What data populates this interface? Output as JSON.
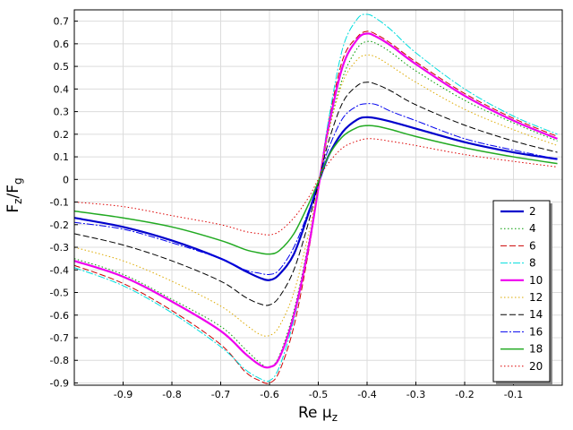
{
  "chart_data": {
    "type": "line",
    "xlabel": {
      "main": "Re μ",
      "sub": "z"
    },
    "ylabel": {
      "num": "F",
      "num_sub": "z",
      "sep": "/",
      "den": "F",
      "den_sub": "g"
    },
    "xlim": [
      -1.0,
      -0.0
    ],
    "ylim": [
      -0.91,
      0.75
    ],
    "x_ticks": [
      -0.9,
      -0.8,
      -0.7,
      -0.6,
      -0.5,
      -0.4,
      -0.3,
      -0.2,
      -0.1
    ],
    "y_ticks": [
      -0.9,
      -0.8,
      -0.7,
      -0.6,
      -0.5,
      -0.4,
      -0.3,
      -0.2,
      -0.1,
      0,
      0.1,
      0.2,
      0.3,
      0.4,
      0.5,
      0.6,
      0.7
    ],
    "grid": true,
    "legend_position": "bottom-right",
    "series": [
      {
        "name": "2",
        "color": "#0000cc",
        "dash": "solid",
        "width": 2.2,
        "x": [
          -1.0,
          -0.9,
          -0.8,
          -0.7,
          -0.65,
          -0.62,
          -0.6,
          -0.58,
          -0.55,
          -0.52,
          -0.5,
          -0.48,
          -0.45,
          -0.42,
          -0.4,
          -0.38,
          -0.35,
          -0.3,
          -0.2,
          -0.1,
          -0.01
        ],
        "values": [
          -0.17,
          -0.21,
          -0.27,
          -0.35,
          -0.405,
          -0.435,
          -0.445,
          -0.42,
          -0.33,
          -0.15,
          -0.02,
          0.1,
          0.21,
          0.265,
          0.275,
          0.27,
          0.255,
          0.225,
          0.165,
          0.12,
          0.09
        ]
      },
      {
        "name": "4",
        "color": "#009900",
        "dash": "1.5,2.5",
        "width": 1.0,
        "x": [
          -1.0,
          -0.9,
          -0.8,
          -0.7,
          -0.65,
          -0.62,
          -0.6,
          -0.58,
          -0.55,
          -0.52,
          -0.5,
          -0.48,
          -0.45,
          -0.42,
          -0.4,
          -0.38,
          -0.35,
          -0.3,
          -0.2,
          -0.1,
          -0.01
        ],
        "values": [
          -0.35,
          -0.42,
          -0.53,
          -0.65,
          -0.75,
          -0.81,
          -0.83,
          -0.78,
          -0.58,
          -0.28,
          -0.04,
          0.2,
          0.45,
          0.58,
          0.61,
          0.6,
          0.56,
          0.48,
          0.35,
          0.25,
          0.17
        ]
      },
      {
        "name": "6",
        "color": "#cc0000",
        "dash": "7,3",
        "width": 1.0,
        "x": [
          -1.0,
          -0.9,
          -0.8,
          -0.7,
          -0.65,
          -0.62,
          -0.6,
          -0.58,
          -0.55,
          -0.52,
          -0.5,
          -0.48,
          -0.45,
          -0.42,
          -0.4,
          -0.38,
          -0.35,
          -0.3,
          -0.2,
          -0.1,
          -0.01
        ],
        "values": [
          -0.38,
          -0.46,
          -0.58,
          -0.73,
          -0.85,
          -0.89,
          -0.9,
          -0.85,
          -0.65,
          -0.32,
          -0.04,
          0.24,
          0.53,
          0.63,
          0.655,
          0.64,
          0.6,
          0.52,
          0.38,
          0.27,
          0.19
        ]
      },
      {
        "name": "8",
        "color": "#00dddd",
        "dash": "8,2,2,2",
        "width": 1.0,
        "x": [
          -1.0,
          -0.9,
          -0.8,
          -0.7,
          -0.65,
          -0.62,
          -0.6,
          -0.58,
          -0.55,
          -0.52,
          -0.5,
          -0.48,
          -0.45,
          -0.42,
          -0.4,
          -0.38,
          -0.35,
          -0.3,
          -0.2,
          -0.1,
          -0.01
        ],
        "values": [
          -0.39,
          -0.47,
          -0.59,
          -0.74,
          -0.84,
          -0.88,
          -0.89,
          -0.83,
          -0.62,
          -0.3,
          -0.04,
          0.25,
          0.58,
          0.71,
          0.73,
          0.71,
          0.66,
          0.56,
          0.4,
          0.28,
          0.2
        ]
      },
      {
        "name": "10",
        "color": "#ee00ee",
        "dash": "solid",
        "width": 2.2,
        "x": [
          -1.0,
          -0.9,
          -0.8,
          -0.7,
          -0.65,
          -0.62,
          -0.6,
          -0.58,
          -0.55,
          -0.52,
          -0.5,
          -0.48,
          -0.45,
          -0.42,
          -0.4,
          -0.38,
          -0.35,
          -0.3,
          -0.2,
          -0.1,
          -0.01
        ],
        "values": [
          -0.36,
          -0.43,
          -0.54,
          -0.67,
          -0.77,
          -0.82,
          -0.83,
          -0.79,
          -0.6,
          -0.3,
          -0.04,
          0.22,
          0.5,
          0.62,
          0.645,
          0.63,
          0.59,
          0.51,
          0.37,
          0.26,
          0.18
        ]
      },
      {
        "name": "12",
        "color": "#ddaa00",
        "dash": "1.5,2.5",
        "width": 1.0,
        "x": [
          -1.0,
          -0.9,
          -0.8,
          -0.7,
          -0.65,
          -0.62,
          -0.6,
          -0.58,
          -0.55,
          -0.52,
          -0.5,
          -0.48,
          -0.45,
          -0.42,
          -0.4,
          -0.38,
          -0.35,
          -0.3,
          -0.2,
          -0.1,
          -0.01
        ],
        "values": [
          -0.3,
          -0.36,
          -0.45,
          -0.56,
          -0.64,
          -0.685,
          -0.69,
          -0.65,
          -0.5,
          -0.24,
          -0.03,
          0.2,
          0.43,
          0.53,
          0.55,
          0.54,
          0.5,
          0.43,
          0.31,
          0.22,
          0.15
        ]
      },
      {
        "name": "14",
        "color": "#000000",
        "dash": "7,3",
        "width": 1.0,
        "x": [
          -1.0,
          -0.9,
          -0.8,
          -0.7,
          -0.65,
          -0.62,
          -0.6,
          -0.58,
          -0.55,
          -0.52,
          -0.5,
          -0.48,
          -0.45,
          -0.42,
          -0.4,
          -0.38,
          -0.35,
          -0.3,
          -0.2,
          -0.1,
          -0.01
        ],
        "values": [
          -0.24,
          -0.29,
          -0.36,
          -0.45,
          -0.52,
          -0.55,
          -0.555,
          -0.52,
          -0.4,
          -0.19,
          -0.02,
          0.16,
          0.34,
          0.415,
          0.43,
          0.42,
          0.39,
          0.33,
          0.24,
          0.17,
          0.12
        ]
      },
      {
        "name": "16",
        "color": "#0000ee",
        "dash": "8,2,2,2",
        "width": 1.0,
        "x": [
          -1.0,
          -0.9,
          -0.8,
          -0.7,
          -0.65,
          -0.62,
          -0.6,
          -0.58,
          -0.55,
          -0.52,
          -0.5,
          -0.48,
          -0.45,
          -0.42,
          -0.4,
          -0.38,
          -0.35,
          -0.3,
          -0.2,
          -0.1,
          -0.01
        ],
        "values": [
          -0.19,
          -0.22,
          -0.28,
          -0.35,
          -0.4,
          -0.415,
          -0.42,
          -0.4,
          -0.3,
          -0.14,
          -0.01,
          0.13,
          0.27,
          0.325,
          0.335,
          0.33,
          0.3,
          0.26,
          0.18,
          0.13,
          0.09
        ]
      },
      {
        "name": "18",
        "color": "#22aa22",
        "dash": "solid",
        "width": 1.5,
        "x": [
          -1.0,
          -0.9,
          -0.8,
          -0.7,
          -0.65,
          -0.62,
          -0.6,
          -0.58,
          -0.55,
          -0.52,
          -0.5,
          -0.48,
          -0.45,
          -0.42,
          -0.4,
          -0.38,
          -0.35,
          -0.3,
          -0.2,
          -0.1,
          -0.01
        ],
        "values": [
          -0.14,
          -0.17,
          -0.21,
          -0.27,
          -0.31,
          -0.325,
          -0.33,
          -0.315,
          -0.24,
          -0.11,
          -0.01,
          0.1,
          0.19,
          0.23,
          0.238,
          0.235,
          0.22,
          0.19,
          0.14,
          0.1,
          0.07
        ]
      },
      {
        "name": "20",
        "color": "#dd0000",
        "dash": "1.5,2.5",
        "width": 1.0,
        "x": [
          -1.0,
          -0.9,
          -0.8,
          -0.7,
          -0.65,
          -0.62,
          -0.6,
          -0.58,
          -0.55,
          -0.52,
          -0.5,
          -0.48,
          -0.45,
          -0.42,
          -0.4,
          -0.38,
          -0.35,
          -0.3,
          -0.2,
          -0.1,
          -0.01
        ],
        "values": [
          -0.1,
          -0.12,
          -0.16,
          -0.2,
          -0.23,
          -0.24,
          -0.245,
          -0.23,
          -0.17,
          -0.08,
          0.0,
          0.07,
          0.14,
          0.17,
          0.18,
          0.178,
          0.168,
          0.15,
          0.11,
          0.08,
          0.055
        ]
      }
    ]
  }
}
